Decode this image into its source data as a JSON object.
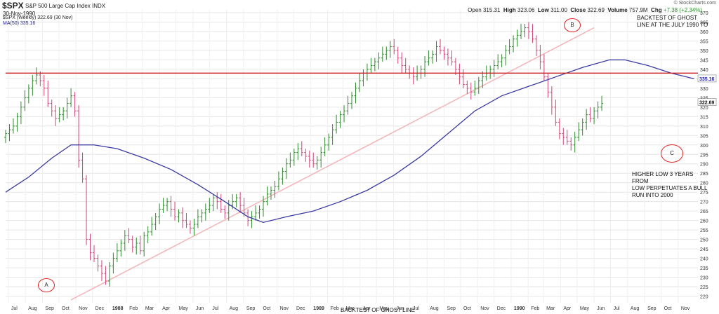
{
  "header": {
    "symbol": "$SPX",
    "description": "S&P 500 Large Cap Index  INDX",
    "date": "30-Nov-1990",
    "legend_price": "$SPX (Weekly) 322.69 (30 Nov)",
    "legend_ma": "MA(50) 335.16",
    "copyright": "© StockCharts.com",
    "open_label": "Open",
    "open": "315.31",
    "high_label": "High",
    "high": "323.06",
    "low_label": "Low",
    "low": "311.00",
    "close_label": "Close",
    "close": "322.69",
    "volume_label": "Volume",
    "volume": "757.9M",
    "chg_label": "Chg",
    "chg": "+7.38 (+2.34%)"
  },
  "annotations": {
    "note_top": "BACKTEST OF GHOST\nLINE AT THE JULY 1990 TO",
    "note_bottom": "HIGHER LOW 3 YEARS FROM\nLOW PERPETUATES A BULL\nRUN INTO 2000",
    "note_cut": "BACKTEST OF GHOST LINE",
    "circle_a": "A",
    "circle_b": "B",
    "circle_c": "C"
  },
  "colors": {
    "up_bar": "#2e8b2e",
    "down_bar": "#d0457a",
    "ma_line": "#3a3aa0",
    "horizontal_line": "#c81e1e",
    "trend_line": "#f2b8bd",
    "circles": "#d22222"
  },
  "chart_data": {
    "type": "ohlc",
    "title": "$SPX S&P 500 Large Cap Index",
    "interval": "weekly",
    "y_axis_side": "right",
    "ylim": [
      215,
      370
    ],
    "y_ticks": [
      220,
      225,
      230,
      235,
      240,
      245,
      250,
      255,
      260,
      265,
      270,
      275,
      280,
      285,
      290,
      295,
      300,
      305,
      310,
      315,
      320,
      325,
      330,
      335,
      340,
      345,
      350,
      355,
      360,
      365,
      370
    ],
    "x_labels": [
      "Jul",
      "Aug",
      "Sep",
      "Oct",
      "Nov",
      "Dec",
      "1988",
      "Feb",
      "Mar",
      "Apr",
      "May",
      "Jun",
      "Jul",
      "Aug",
      "Sep",
      "Oct",
      "Nov",
      "Dec",
      "1989",
      "Feb",
      "Mar",
      "Apr",
      "May",
      "Jun",
      "Jul",
      "Aug",
      "Sep",
      "Oct",
      "Nov",
      "Dec",
      "1990",
      "Feb",
      "Mar",
      "Apr",
      "May",
      "Jun",
      "Jul",
      "Aug",
      "Sep",
      "Oct",
      "Nov"
    ],
    "last_price_label": "322.69",
    "ma_price_label": "335.16",
    "horizontal_line_level": 338,
    "series": [
      {
        "name": "$SPX (Weekly)",
        "style": "ohlc_bars",
        "weekly_close": [
          306,
          308,
          310,
          315,
          320,
          325,
          330,
          334,
          337,
          334,
          330,
          322,
          318,
          314,
          316,
          318,
          322,
          326,
          318,
          292,
          282,
          250,
          243,
          240,
          236,
          232,
          228,
          236,
          240,
          244,
          248,
          252,
          250,
          246,
          248,
          244,
          252,
          254,
          258,
          262,
          266,
          268,
          270,
          266,
          262,
          264,
          260,
          258,
          256,
          258,
          262,
          264,
          266,
          268,
          272,
          270,
          266,
          264,
          268,
          270,
          272,
          268,
          264,
          260,
          262,
          264,
          266,
          270,
          274,
          276,
          278,
          282,
          286,
          290,
          292,
          296,
          298,
          296,
          294,
          292,
          290,
          292,
          296,
          300,
          304,
          308,
          312,
          316,
          318,
          322,
          326,
          330,
          334,
          338,
          340,
          342,
          344,
          346,
          348,
          350,
          352,
          350,
          346,
          342,
          340,
          338,
          336,
          338,
          340,
          344,
          346,
          348,
          352,
          350,
          348,
          346,
          344,
          340,
          336,
          332,
          330,
          328,
          330,
          334,
          336,
          338,
          340,
          342,
          344,
          346,
          350,
          352,
          356,
          358,
          360,
          362,
          360,
          356,
          350,
          344,
          336,
          328,
          320,
          312,
          306,
          304,
          302,
          300,
          304,
          308,
          312,
          316,
          314,
          318,
          320,
          322
        ],
        "week_start_date": "1987-06-26"
      },
      {
        "name": "MA(50)",
        "style": "line",
        "points": [
          {
            "x": "1987-06-26",
            "y": 275
          },
          {
            "x": "1987-08-07",
            "y": 283
          },
          {
            "x": "1987-09-18",
            "y": 293
          },
          {
            "x": "1987-10-23",
            "y": 300
          },
          {
            "x": "1987-12-04",
            "y": 300
          },
          {
            "x": "1988-01-15",
            "y": 298
          },
          {
            "x": "1988-03-04",
            "y": 293
          },
          {
            "x": "1988-04-22",
            "y": 287
          },
          {
            "x": "1988-06-10",
            "y": 279
          },
          {
            "x": "1988-07-29",
            "y": 270
          },
          {
            "x": "1988-09-09",
            "y": 262
          },
          {
            "x": "1988-10-07",
            "y": 259
          },
          {
            "x": "1988-11-18",
            "y": 262
          },
          {
            "x": "1989-01-06",
            "y": 265
          },
          {
            "x": "1989-02-24",
            "y": 270
          },
          {
            "x": "1989-04-14",
            "y": 276
          },
          {
            "x": "1989-06-02",
            "y": 284
          },
          {
            "x": "1989-07-21",
            "y": 294
          },
          {
            "x": "1989-09-08",
            "y": 306
          },
          {
            "x": "1989-10-27",
            "y": 318
          },
          {
            "x": "1989-12-15",
            "y": 326
          },
          {
            "x": "1990-02-02",
            "y": 331
          },
          {
            "x": "1990-03-23",
            "y": 336
          },
          {
            "x": "1990-05-11",
            "y": 341
          },
          {
            "x": "1990-06-29",
            "y": 345
          },
          {
            "x": "1990-07-27",
            "y": 345
          },
          {
            "x": "1990-09-07",
            "y": 342
          },
          {
            "x": "1990-10-19",
            "y": 338
          },
          {
            "x": "1990-11-30",
            "y": 335
          }
        ]
      },
      {
        "name": "ghost trend line",
        "style": "line",
        "points": [
          {
            "x": "1987-10-23",
            "y": 218
          },
          {
            "x": "1990-06-01",
            "y": 362
          }
        ]
      }
    ]
  }
}
